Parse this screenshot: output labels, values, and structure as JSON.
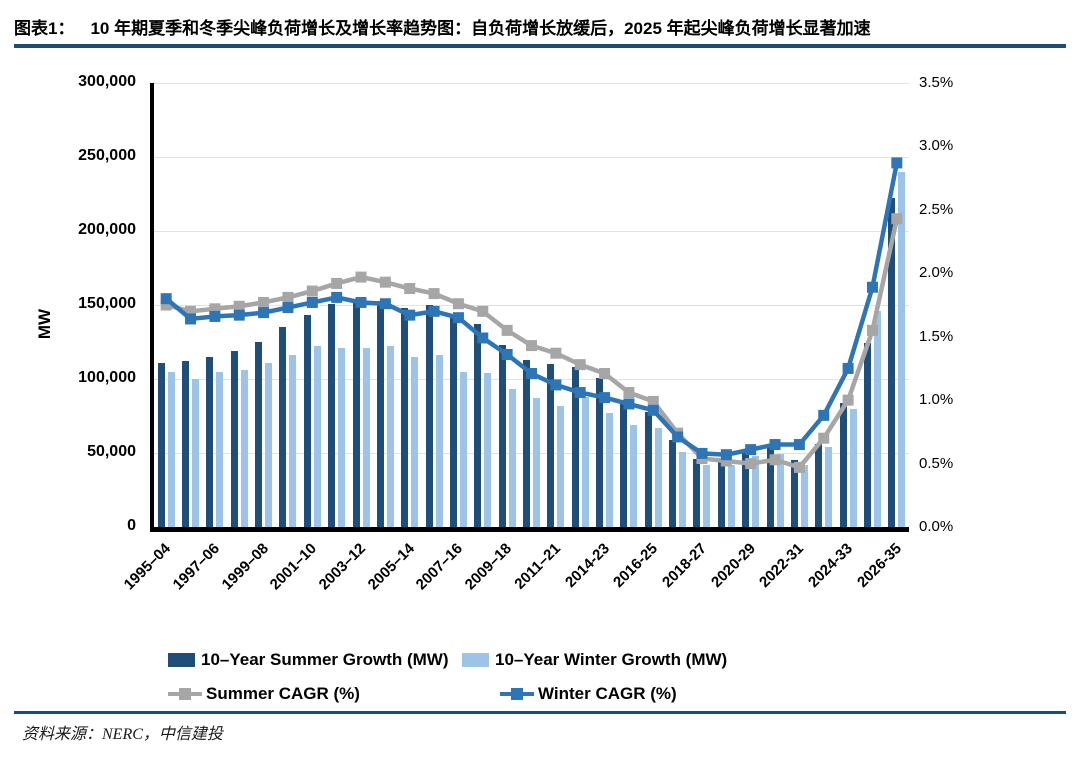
{
  "header": {
    "figure_label": "图表1：",
    "title": "10 年期夏季和冬季尖峰负荷增长及增长率趋势图：自负荷增长放缓后，2025 年起尖峰负荷增长显著加速"
  },
  "footer": {
    "source": "资料来源：NERC，中信建投"
  },
  "colors": {
    "summer_bar": "#1F4E79",
    "winter_bar": "#9DC3E6",
    "summer_cagr_line": "#A6A6A6",
    "winter_cagr_line": "#2E75B6",
    "rule": "#1B4E75",
    "gridline": "#E2E2E2"
  },
  "chart_data": {
    "type": "bar",
    "subtype": "grouped bars with two overlay lines (dual axis combo)",
    "n_categories": 31,
    "left_axis": {
      "label": "MW",
      "min": 0,
      "max": 300000,
      "tick_step": 50000,
      "ticks": [
        {
          "value": 0,
          "label": "0"
        },
        {
          "value": 50000,
          "label": "50,000"
        },
        {
          "value": 100000,
          "label": "100,000"
        },
        {
          "value": 150000,
          "label": "150,000"
        },
        {
          "value": 200000,
          "label": "200,000"
        },
        {
          "value": 250000,
          "label": "250,000"
        },
        {
          "value": 300000,
          "label": "300,000"
        }
      ]
    },
    "right_axis": {
      "min": 0,
      "max": 3.5,
      "tick_step": 0.5,
      "ticks": [
        {
          "value": 0,
          "label": "0.0%"
        },
        {
          "value": 0.5,
          "label": "0.5%"
        },
        {
          "value": 1.0,
          "label": "1.0%"
        },
        {
          "value": 1.5,
          "label": "1.5%"
        },
        {
          "value": 2.0,
          "label": "2.0%"
        },
        {
          "value": 2.5,
          "label": "2.5%"
        },
        {
          "value": 3.0,
          "label": "3.0%"
        },
        {
          "value": 3.5,
          "label": "3.5%"
        }
      ]
    },
    "x_ticks": [
      {
        "index": 0,
        "label": "1995–04"
      },
      {
        "index": 2,
        "label": "1997–06"
      },
      {
        "index": 4,
        "label": "1999–08"
      },
      {
        "index": 6,
        "label": "2001–10"
      },
      {
        "index": 8,
        "label": "2003–12"
      },
      {
        "index": 10,
        "label": "2005–14"
      },
      {
        "index": 12,
        "label": "2007–16"
      },
      {
        "index": 14,
        "label": "2009–18"
      },
      {
        "index": 16,
        "label": "2011–21"
      },
      {
        "index": 18,
        "label": "2014-23"
      },
      {
        "index": 20,
        "label": "2016-25"
      },
      {
        "index": 22,
        "label": "2018-27"
      },
      {
        "index": 24,
        "label": "2020-29"
      },
      {
        "index": 26,
        "label": "2022-31"
      },
      {
        "index": 28,
        "label": "2024-33"
      },
      {
        "index": 30,
        "label": "2026-35"
      }
    ],
    "series": [
      {
        "name": "10–Year Summer Growth (MW)",
        "type": "bar",
        "axis": "left",
        "color": "#1F4E79",
        "values": [
          111000,
          112000,
          115000,
          119000,
          125000,
          135000,
          143000,
          151000,
          152000,
          153000,
          148000,
          150000,
          144000,
          137000,
          123000,
          113000,
          110000,
          108000,
          101000,
          86000,
          78000,
          59000,
          46000,
          45000,
          52000,
          54000,
          45000,
          56000,
          84000,
          124000,
          222000
        ]
      },
      {
        "name": "10–Year Winter Growth (MW)",
        "type": "bar",
        "axis": "left",
        "color": "#9DC3E6",
        "values": [
          105000,
          100000,
          105000,
          106000,
          111000,
          116000,
          122000,
          121000,
          121000,
          122000,
          115000,
          116000,
          105000,
          104000,
          93000,
          87000,
          82000,
          88000,
          77000,
          69000,
          67000,
          51000,
          42000,
          42000,
          48000,
          49000,
          42000,
          54000,
          80000,
          146000,
          240000
        ]
      },
      {
        "name": "Summer CAGR (%)",
        "type": "line",
        "axis": "right",
        "color": "#A6A6A6",
        "values": [
          1.75,
          1.7,
          1.72,
          1.74,
          1.77,
          1.81,
          1.86,
          1.92,
          1.97,
          1.93,
          1.88,
          1.84,
          1.76,
          1.7,
          1.55,
          1.43,
          1.37,
          1.28,
          1.21,
          1.06,
          0.99,
          0.74,
          0.54,
          0.52,
          0.5,
          0.53,
          0.47,
          0.7,
          1.0,
          1.55,
          2.43
        ]
      },
      {
        "name": "Winter CAGR (%)",
        "type": "line",
        "axis": "right",
        "color": "#2E75B6",
        "values": [
          1.8,
          1.64,
          1.66,
          1.67,
          1.69,
          1.73,
          1.77,
          1.81,
          1.77,
          1.76,
          1.67,
          1.7,
          1.65,
          1.49,
          1.36,
          1.21,
          1.12,
          1.06,
          1.02,
          0.97,
          0.92,
          0.71,
          0.58,
          0.57,
          0.61,
          0.65,
          0.65,
          0.88,
          1.25,
          1.89,
          2.87
        ]
      }
    ],
    "legend_position": "bottom",
    "grid": true
  }
}
